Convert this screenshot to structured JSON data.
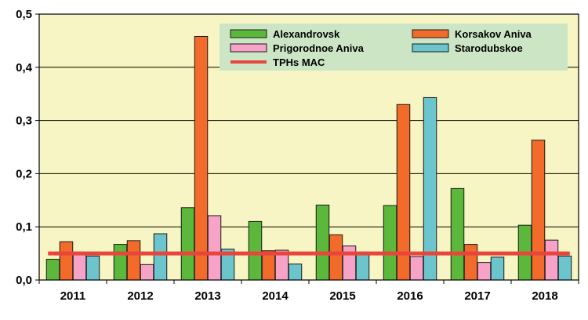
{
  "chart_data": {
    "type": "bar",
    "categories": [
      "2011",
      "2012",
      "2013",
      "2014",
      "2015",
      "2016",
      "2017",
      "2018"
    ],
    "series": [
      {
        "name": "Alexandrovsk",
        "color": "#5cb83a",
        "values": [
          0.039,
          0.067,
          0.136,
          0.11,
          0.141,
          0.14,
          0.172,
          0.103
        ]
      },
      {
        "name": "Korsakov Aniva",
        "color": "#f26b2a",
        "values": [
          0.072,
          0.074,
          0.458,
          0.055,
          0.085,
          0.33,
          0.067,
          0.263
        ]
      },
      {
        "name": "Prigorodnoe Aniva",
        "color": "#f7a3c8",
        "values": [
          0.05,
          0.029,
          0.121,
          0.056,
          0.064,
          0.044,
          0.033,
          0.075
        ]
      },
      {
        "name": "Starodubskoe",
        "color": "#6cc4cc",
        "values": [
          0.045,
          0.087,
          0.058,
          0.03,
          0.05,
          0.343,
          0.043,
          0.045
        ]
      }
    ],
    "reference_line": {
      "name": "TPHs MAC",
      "value": 0.05,
      "color": "#e8453c"
    },
    "yticks": [
      "0,0",
      "0,1",
      "0,2",
      "0,3",
      "0,4",
      "0,5"
    ],
    "ylim": [
      0,
      0.5
    ],
    "title": "",
    "xlabel": "",
    "ylabel": "",
    "grid": true,
    "legend_position": "top-right",
    "plot_background": "#f7f5c3",
    "legend_background": "#cce6c5"
  }
}
